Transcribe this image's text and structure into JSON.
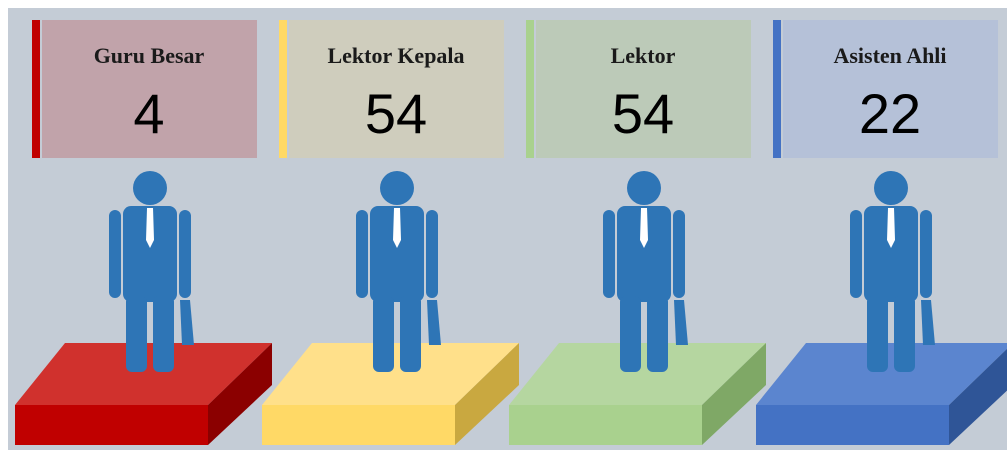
{
  "cards": [
    {
      "label": "Guru Besar",
      "value": 4
    },
    {
      "label": "Lektor Kepala",
      "value": 54
    },
    {
      "label": "Lektor",
      "value": 54
    },
    {
      "label": "Asisten Ahli",
      "value": 22
    }
  ]
}
